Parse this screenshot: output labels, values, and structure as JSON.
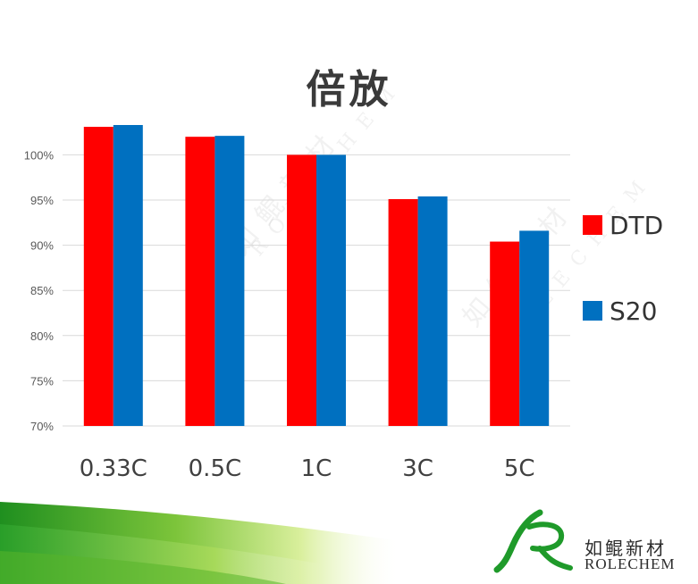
{
  "chart_data": {
    "type": "bar",
    "title": "倍放",
    "categories": [
      "0.33C",
      "0.5C",
      "1C",
      "3C",
      "5C"
    ],
    "series": [
      {
        "name": "DTD",
        "color": "#ff0000",
        "values": [
          103.1,
          102.0,
          100.0,
          95.1,
          90.4
        ]
      },
      {
        "name": "S20",
        "color": "#0070c0",
        "values": [
          103.3,
          102.1,
          100.0,
          95.4,
          91.6
        ]
      }
    ],
    "ylim": [
      70,
      103.3
    ],
    "yticks": [
      "70%",
      "75%",
      "80%",
      "85%",
      "90%",
      "95%",
      "100%"
    ],
    "ytick_values": [
      70,
      75,
      80,
      85,
      90,
      95,
      100
    ],
    "grid": true,
    "legend_position": "right"
  },
  "brand": {
    "name_cn": "如鲲新材",
    "name_en": "ROLECHEM",
    "colors": {
      "green_dark": "#1f9a2a",
      "green_light": "#9ad64a"
    }
  },
  "watermark_text": {
    "cn": "如鲲新材",
    "en": "ROLECHEM"
  }
}
